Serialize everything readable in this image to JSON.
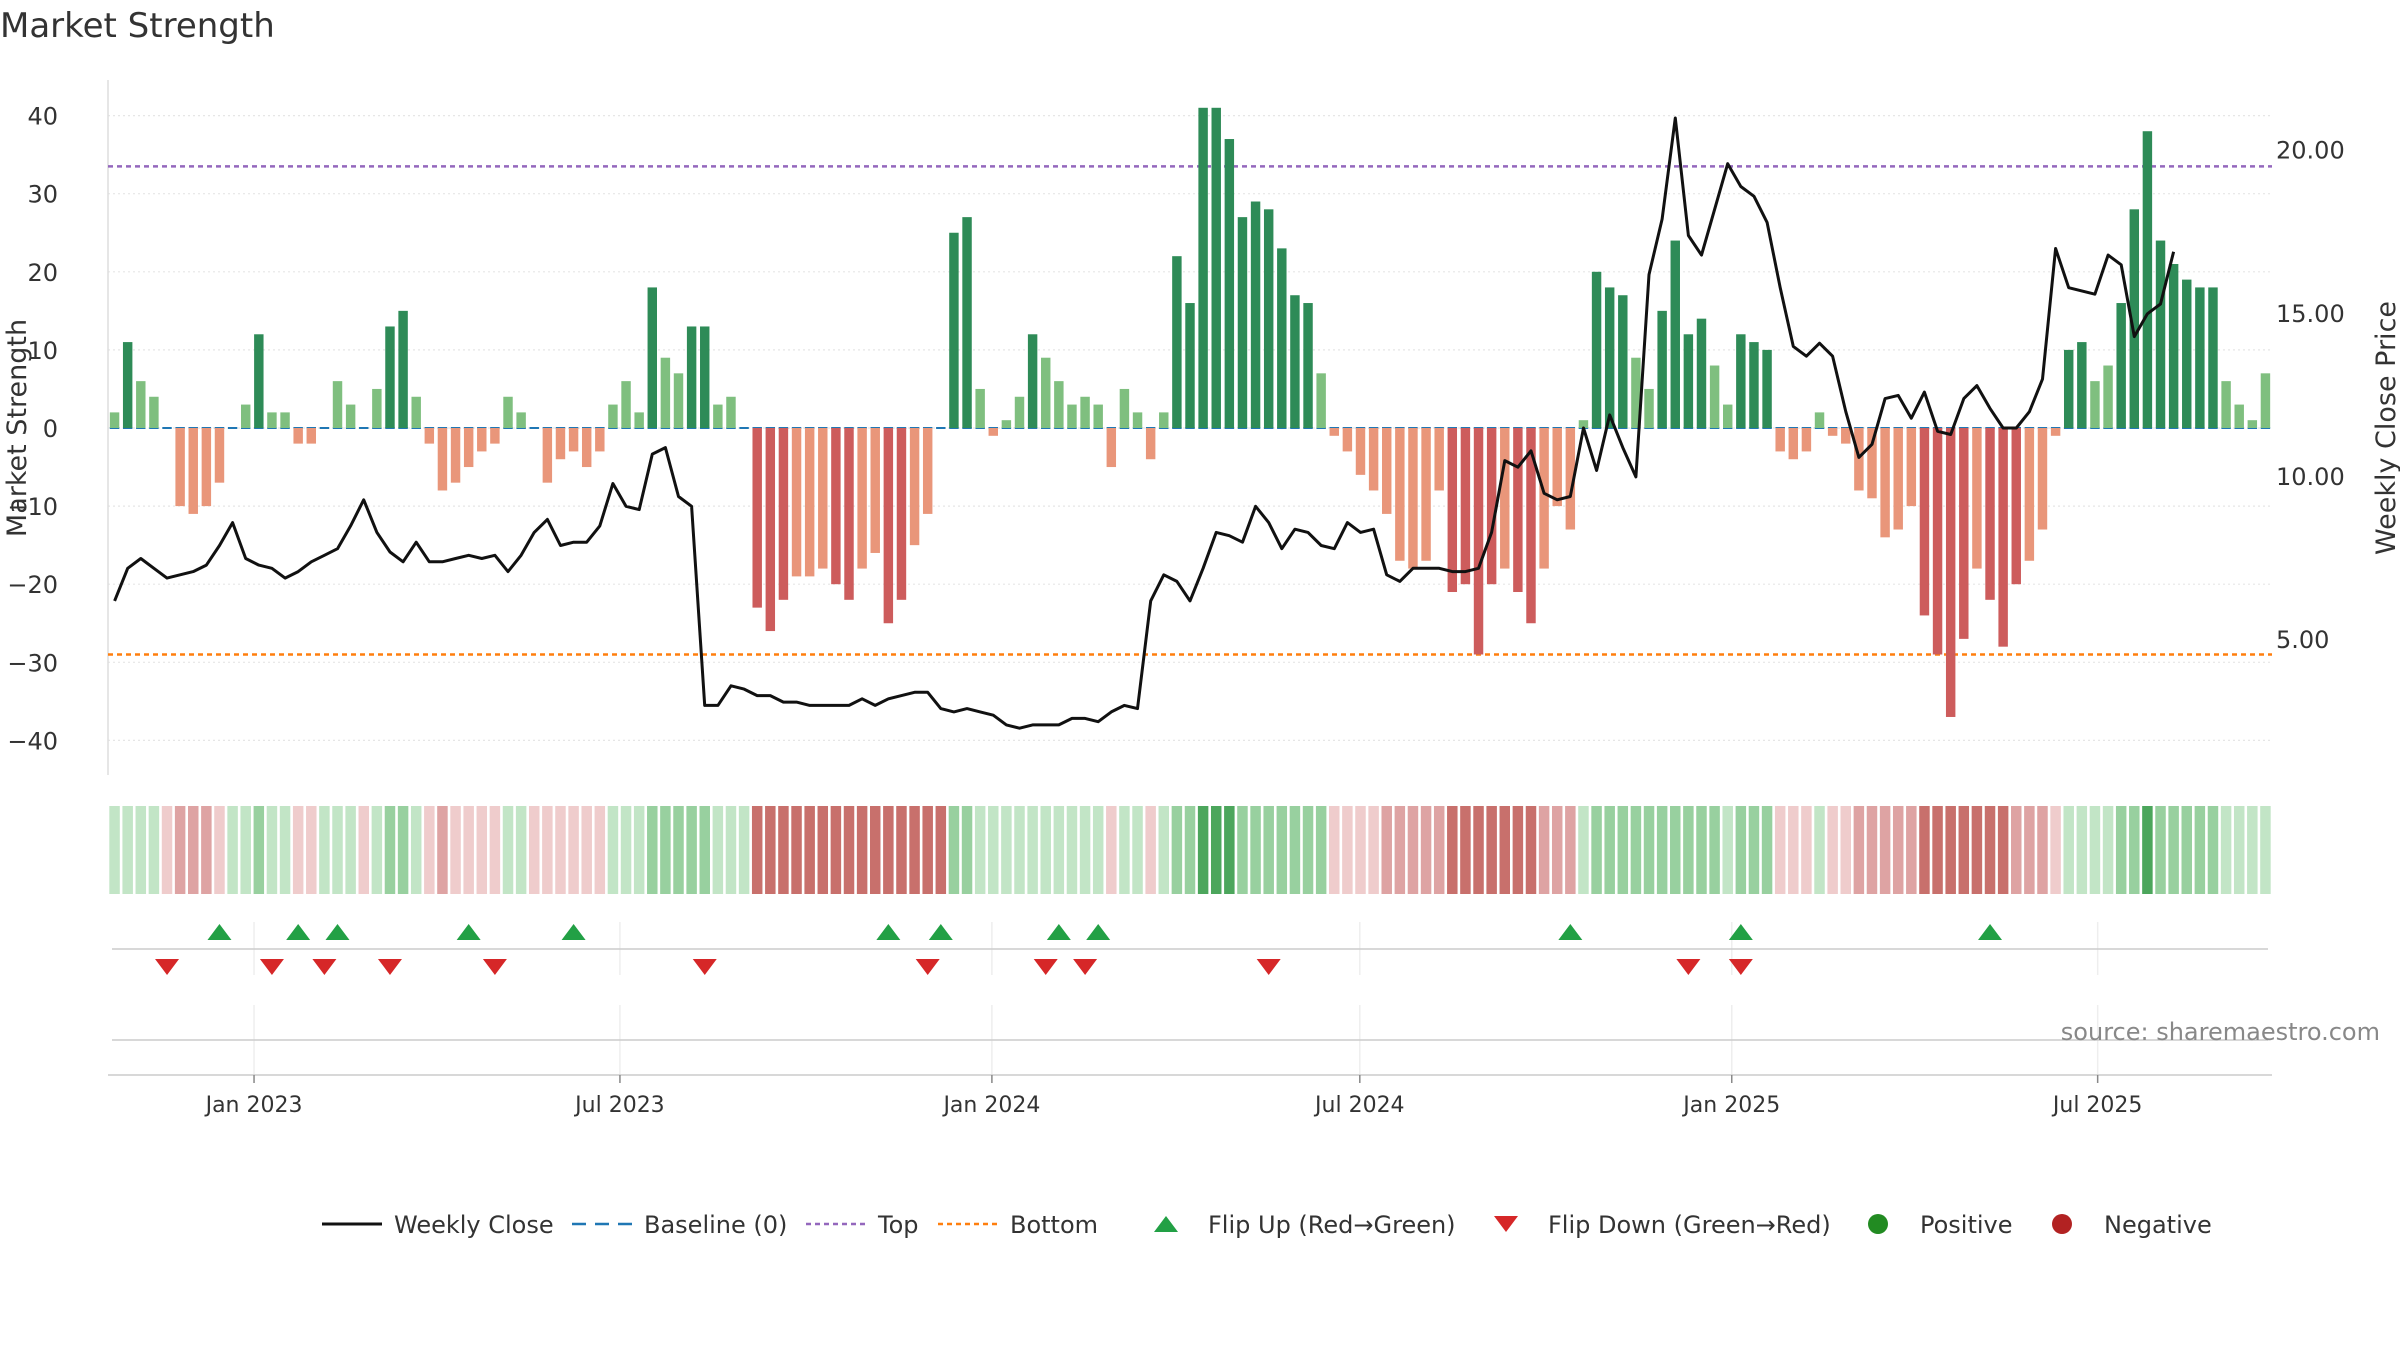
{
  "chart_data": {
    "type": "bar",
    "title": "Market Strength",
    "ylabel": "Market Strength",
    "y2label": "Weekly Close Price",
    "source": "source: sharemaestro.com",
    "ylim": [
      -44,
      44
    ],
    "y2lim": [
      1.5,
      21.5
    ],
    "top_line": 33.5,
    "bottom_line": -29,
    "baseline": 0,
    "yticks": [
      40,
      30,
      20,
      10,
      0,
      -10,
      -20,
      -30,
      -40
    ],
    "ytick_labels": [
      "40",
      "30",
      "20",
      "10",
      "0",
      "−10",
      "−20",
      "−30",
      "−40"
    ],
    "y2ticks": [
      20,
      15,
      10,
      5
    ],
    "y2tick_labels": [
      "20.00",
      "15.00",
      "10.00",
      "5.00"
    ],
    "start_date": "2022-10-24",
    "end_date": "2025-09-22",
    "xticks": [
      "2023-01-01",
      "2023-07-01",
      "2024-01-01",
      "2024-07-01",
      "2025-01-01",
      "2025-07-01"
    ],
    "xtick_labels": [
      "Jan 2023",
      "Jul 2023",
      "Jan 2024",
      "Jul 2024",
      "Jan 2025",
      "Jul 2025"
    ],
    "grid": true,
    "legend_position": "bottom",
    "series": [
      {
        "name": "Market Strength",
        "values": [
          2,
          11,
          6,
          4,
          0,
          -10,
          -11,
          -10,
          -7,
          0,
          3,
          12,
          2,
          2,
          -2,
          -2,
          0,
          6,
          3,
          0,
          5,
          13,
          15,
          4,
          -2,
          -8,
          -7,
          -5,
          -3,
          -2,
          4,
          2,
          0,
          -7,
          -4,
          -3,
          -5,
          -3,
          3,
          6,
          2,
          18,
          9,
          7,
          13,
          13,
          3,
          4,
          0,
          -23,
          -26,
          -22,
          -19,
          -19,
          -18,
          -20,
          -22,
          -18,
          -16,
          -25,
          -22,
          -15,
          -11,
          0,
          25,
          27,
          5,
          -1,
          1,
          4,
          12,
          9,
          6,
          3,
          4,
          3,
          -5,
          5,
          2,
          -4,
          2,
          22,
          16,
          41,
          41,
          37,
          27,
          29,
          28,
          23,
          17,
          16,
          7,
          -1,
          -3,
          -6,
          -8,
          -11,
          -17,
          -18,
          -17,
          -8,
          -21,
          -20,
          -29,
          -20,
          -18,
          -21,
          -25,
          -18,
          -10,
          -13,
          1,
          20,
          18,
          17,
          9,
          5,
          15,
          24,
          12,
          14,
          8,
          3,
          12,
          11,
          10,
          -3,
          -4,
          -3,
          2,
          -1,
          -2,
          -8,
          -9,
          -14,
          -13,
          -10,
          -24,
          -29,
          -37,
          -27,
          -18,
          -22,
          -28,
          -20,
          -17,
          -13,
          -1,
          10,
          11,
          6,
          8,
          16,
          28,
          38,
          24,
          21,
          19,
          18,
          18,
          6,
          3,
          1,
          7
        ]
      },
      {
        "name": "Weekly Close",
        "values": [
          6.2,
          7.2,
          7.5,
          7.2,
          6.9,
          7.0,
          7.1,
          7.3,
          7.9,
          8.6,
          7.5,
          7.3,
          7.2,
          6.9,
          7.1,
          7.4,
          7.6,
          7.8,
          8.5,
          9.3,
          8.3,
          7.7,
          7.4,
          8.0,
          7.4,
          7.4,
          7.5,
          7.6,
          7.5,
          7.6,
          7.1,
          7.6,
          8.3,
          8.7,
          7.9,
          8.0,
          8.0,
          8.5,
          9.8,
          9.1,
          9.0,
          10.7,
          10.9,
          9.4,
          9.1,
          3.0,
          3.0,
          3.6,
          3.5,
          3.3,
          3.3,
          3.1,
          3.1,
          3.0,
          3.0,
          3.0,
          3.0,
          3.2,
          3.0,
          3.2,
          3.3,
          3.4,
          3.4,
          2.9,
          2.8,
          2.9,
          2.8,
          2.7,
          2.4,
          2.3,
          2.4,
          2.4,
          2.4,
          2.6,
          2.6,
          2.5,
          2.8,
          3.0,
          2.9,
          6.2,
          7.0,
          6.8,
          6.2,
          7.2,
          8.3,
          8.2,
          8.0,
          9.1,
          8.6,
          7.8,
          8.4,
          8.3,
          7.9,
          7.8,
          8.6,
          8.3,
          8.4,
          7.0,
          6.8,
          7.2,
          7.2,
          7.2,
          7.1,
          7.1,
          7.2,
          8.3,
          10.5,
          10.3,
          10.8,
          9.5,
          9.3,
          9.4,
          11.5,
          10.2,
          11.9,
          10.9,
          10.0,
          16.2,
          17.9,
          21.0,
          17.4,
          16.8,
          18.2,
          19.6,
          18.9,
          18.6,
          17.8,
          15.8,
          14.0,
          13.7,
          14.1,
          13.7,
          12.0,
          10.6,
          11.0,
          12.4,
          12.5,
          11.8,
          12.6,
          11.4,
          11.3,
          12.4,
          12.8,
          12.1,
          11.5,
          11.5,
          12.0,
          13.0,
          17.0,
          15.8,
          15.7,
          15.6,
          16.8,
          16.5,
          14.3,
          15.0,
          15.3,
          16.9
        ]
      }
    ],
    "regime_strip": [
      "lg",
      "lg",
      "lg",
      "lg",
      "lr",
      "mr",
      "mr",
      "mr",
      "lr",
      "lg",
      "lg",
      "mg",
      "lg",
      "lg",
      "lr",
      "lr",
      "lg",
      "lg",
      "lg",
      "lr",
      "lg",
      "mg",
      "mg",
      "lg",
      "lr",
      "mr",
      "lr",
      "lr",
      "lr",
      "lr",
      "lg",
      "lg",
      "lr",
      "lr",
      "lr",
      "lr",
      "lr",
      "lr",
      "lg",
      "lg",
      "lg",
      "mg",
      "mg",
      "mg",
      "mg",
      "mg",
      "lg",
      "lg",
      "lg",
      "dr",
      "dr",
      "dr",
      "dr",
      "dr",
      "dr",
      "dr",
      "dr",
      "dr",
      "dr",
      "dr",
      "dr",
      "dr",
      "dr",
      "dr",
      "mg",
      "mg",
      "lg",
      "lg",
      "lg",
      "lg",
      "lg",
      "lg",
      "lg",
      "lg",
      "lg",
      "lg",
      "lr",
      "lg",
      "lg",
      "lr",
      "lg",
      "mg",
      "mg",
      "dg",
      "dg",
      "dg",
      "mg",
      "mg",
      "mg",
      "mg",
      "mg",
      "mg",
      "mg",
      "lr",
      "lr",
      "lr",
      "lr",
      "mr",
      "mr",
      "mr",
      "mr",
      "mr",
      "dr",
      "dr",
      "dr",
      "dr",
      "dr",
      "dr",
      "dr",
      "mr",
      "mr",
      "mr",
      "lg",
      "mg",
      "mg",
      "mg",
      "mg",
      "mg",
      "mg",
      "mg",
      "mg",
      "mg",
      "mg",
      "lg",
      "mg",
      "mg",
      "mg",
      "lr",
      "lr",
      "lr",
      "lg",
      "lr",
      "lr",
      "mr",
      "mr",
      "mr",
      "mr",
      "mr",
      "dr",
      "dr",
      "dr",
      "dr",
      "dr",
      "dr",
      "dr",
      "mr",
      "mr",
      "mr",
      "lr",
      "lg",
      "lg",
      "lg",
      "lg",
      "mg",
      "mg",
      "dg",
      "mg",
      "mg",
      "mg",
      "mg",
      "mg",
      "lg",
      "lg",
      "lg",
      "lg"
    ],
    "flip_up_weeks": [
      8,
      14,
      17,
      27,
      35,
      59,
      63,
      72,
      75,
      111,
      124,
      143
    ],
    "flip_down_weeks": [
      4,
      12,
      16,
      21,
      29,
      45,
      62,
      71,
      74,
      88,
      120,
      124
    ],
    "colors": {
      "strong_green": "#2e8b57",
      "light_green": "#7fbf7f",
      "strong_red": "#cd5c5c",
      "light_red": "#e9967a",
      "price_line": "#111111",
      "baseline": "#1f77b4",
      "top": "#9467bd",
      "bottom": "#ff7f0e",
      "flip_up": "#22a045",
      "flip_down": "#d62728",
      "positive": "#228b22",
      "negative": "#b22222",
      "strip_dark_green": "#4ca65c",
      "strip_mid_green": "#98d09f",
      "strip_light_green": "#c2e5c6",
      "strip_dark_red": "#c8706c",
      "strip_mid_red": "#dea3a3",
      "strip_light_red": "#efcccc"
    },
    "legend": [
      {
        "label": "Weekly Close",
        "symbol": "line",
        "color": "#111111"
      },
      {
        "label": "Baseline (0)",
        "symbol": "dash",
        "color": "#1f77b4"
      },
      {
        "label": "Top",
        "symbol": "dot",
        "color": "#9467bd"
      },
      {
        "label": "Bottom",
        "symbol": "dot",
        "color": "#ff7f0e"
      },
      {
        "label": "Flip Up (Red→Green)",
        "symbol": "tri-up",
        "color": "#22a045"
      },
      {
        "label": "Flip Down (Green→Red)",
        "symbol": "tri-down",
        "color": "#d62728"
      },
      {
        "label": "Positive",
        "symbol": "circle",
        "color": "#228b22"
      },
      {
        "label": "Negative",
        "symbol": "circle",
        "color": "#b22222"
      }
    ]
  }
}
